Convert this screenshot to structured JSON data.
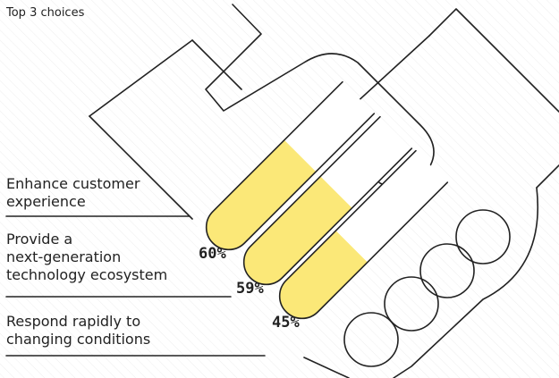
{
  "chart_data": {
    "type": "handshake-bar",
    "subtitle": "Top 3 choices",
    "categories": [
      "Enhance customer\nexperience",
      "Provide a\nnext-generation\ntechnology ecosystem",
      "Respond rapidly to\nchanging conditions"
    ],
    "values": [
      60,
      59,
      45
    ],
    "value_labels": [
      "60%",
      "59%",
      "45%"
    ],
    "color": "#fbe878",
    "ylim": [
      0,
      100
    ]
  }
}
